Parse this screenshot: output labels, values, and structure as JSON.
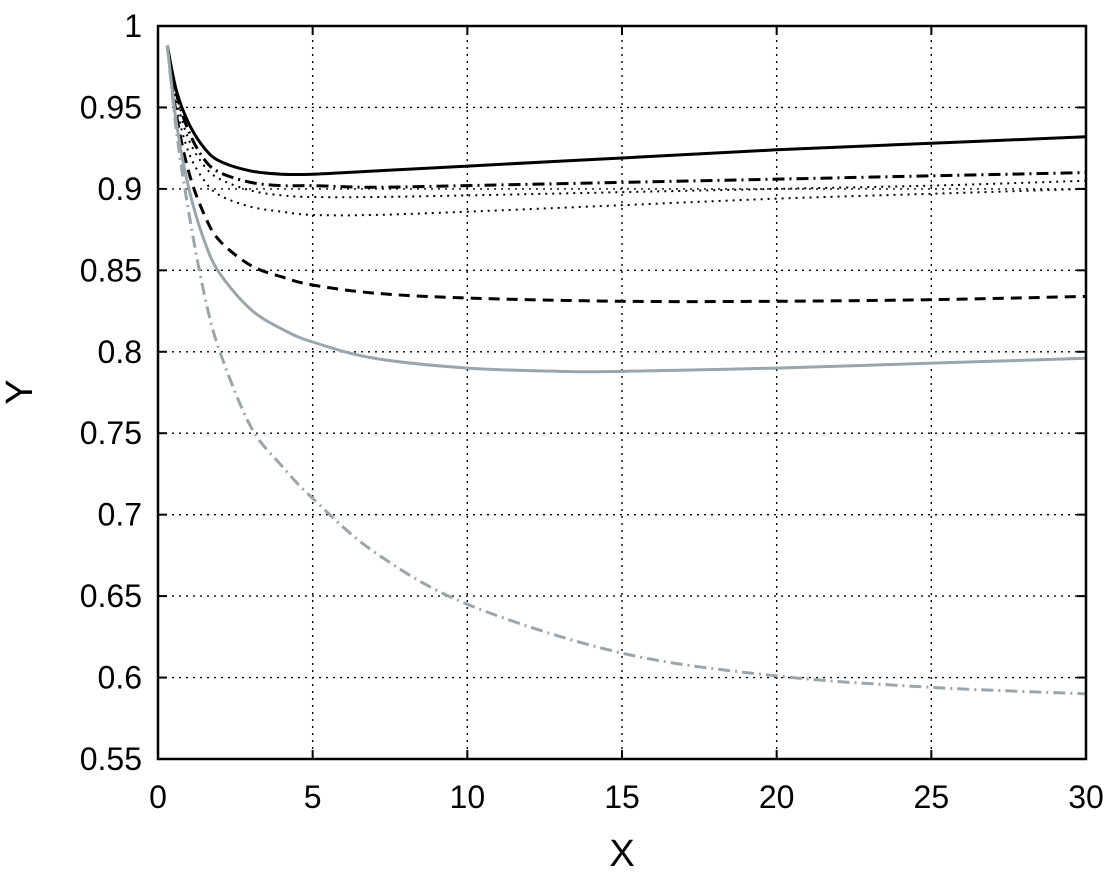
{
  "chart_data": {
    "type": "line",
    "title": "",
    "xlabel": "X",
    "ylabel": "Y",
    "xlim": [
      0,
      30
    ],
    "ylim": [
      0.55,
      1
    ],
    "xticks": [
      "0",
      "5",
      "10",
      "15",
      "20",
      "25",
      "30"
    ],
    "yticks": [
      "0.55",
      "0.6",
      "0.65",
      "0.7",
      "0.75",
      "0.8",
      "0.85",
      "0.9",
      "0.95",
      "1"
    ],
    "grid": true,
    "legend": "none",
    "series": [
      {
        "style": "solid",
        "color": "#000000",
        "x": [
          0.3,
          0.6,
          1,
          1.5,
          2,
          3,
          4,
          5,
          7,
          10,
          15,
          20,
          25,
          30
        ],
        "y": [
          0.988,
          0.96,
          0.94,
          0.925,
          0.917,
          0.911,
          0.909,
          0.909,
          0.911,
          0.914,
          0.919,
          0.924,
          0.928,
          0.932
        ]
      },
      {
        "style": "dash-dot",
        "color": "#000000",
        "x": [
          0.3,
          0.6,
          1,
          1.5,
          2,
          3,
          4,
          5,
          7,
          10,
          15,
          20,
          25,
          30
        ],
        "y": [
          0.988,
          0.958,
          0.935,
          0.918,
          0.91,
          0.904,
          0.902,
          0.902,
          0.901,
          0.902,
          0.904,
          0.906,
          0.908,
          0.91
        ]
      },
      {
        "style": "dotted",
        "color": "#000000",
        "x": [
          0.3,
          0.6,
          1,
          1.5,
          2,
          3,
          4,
          5,
          7,
          10,
          15,
          20,
          25,
          30
        ],
        "y": [
          0.988,
          0.955,
          0.93,
          0.914,
          0.906,
          0.899,
          0.896,
          0.895,
          0.895,
          0.896,
          0.898,
          0.9,
          0.902,
          0.905
        ]
      },
      {
        "style": "dotted",
        "color": "#000000",
        "x": [
          0.3,
          0.6,
          1,
          1.5,
          2,
          3,
          4,
          5,
          7,
          10,
          15,
          20,
          25,
          30
        ],
        "y": [
          0.988,
          0.95,
          0.922,
          0.905,
          0.896,
          0.889,
          0.886,
          0.884,
          0.884,
          0.886,
          0.89,
          0.894,
          0.897,
          0.9
        ]
      },
      {
        "style": "dashed",
        "color": "#000000",
        "x": [
          0.3,
          0.6,
          1,
          1.5,
          2,
          3,
          4,
          5,
          7,
          10,
          15,
          20,
          25,
          30
        ],
        "y": [
          0.988,
          0.945,
          0.91,
          0.884,
          0.868,
          0.853,
          0.846,
          0.841,
          0.836,
          0.833,
          0.831,
          0.831,
          0.832,
          0.834
        ]
      },
      {
        "style": "solid",
        "color": "#9aa6ab",
        "x": [
          0.3,
          0.6,
          1,
          1.5,
          2,
          3,
          4,
          5,
          7,
          10,
          13,
          15,
          20,
          25,
          30
        ],
        "y": [
          0.988,
          0.94,
          0.9,
          0.868,
          0.848,
          0.826,
          0.814,
          0.806,
          0.796,
          0.79,
          0.788,
          0.788,
          0.79,
          0.793,
          0.796
        ]
      },
      {
        "style": "dash-dot",
        "color": "#9aa6ab",
        "x": [
          0.3,
          0.6,
          1,
          1.5,
          2,
          3,
          4,
          5,
          7,
          10,
          15,
          20,
          25,
          30
        ],
        "y": [
          0.988,
          0.935,
          0.885,
          0.835,
          0.8,
          0.754,
          0.73,
          0.71,
          0.677,
          0.645,
          0.615,
          0.601,
          0.594,
          0.59
        ]
      }
    ]
  }
}
